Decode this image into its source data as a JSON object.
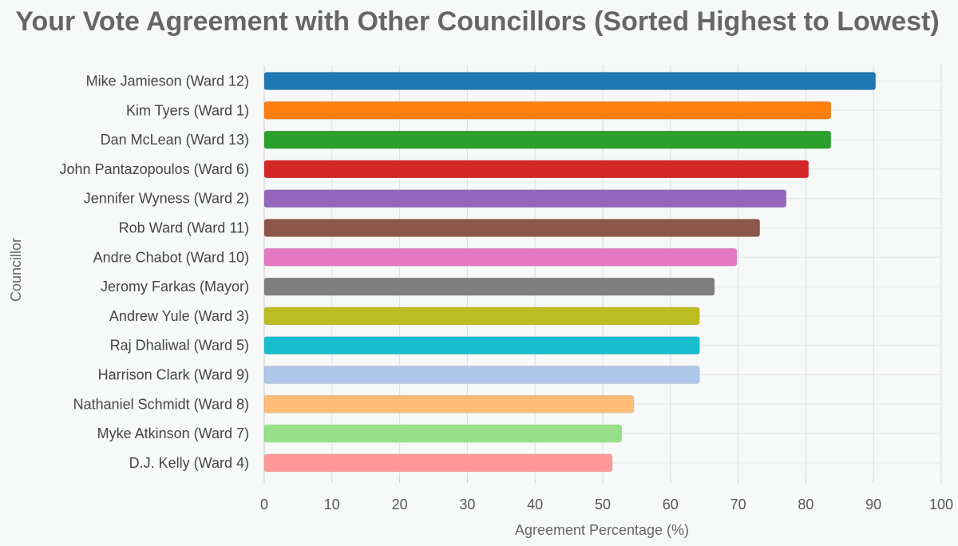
{
  "chart_data": {
    "type": "bar",
    "orientation": "horizontal",
    "title": "Your Vote Agreement with Other Councillors (Sorted Highest to Lowest)",
    "xlabel": "Agreement Percentage (%)",
    "ylabel": "Councillor",
    "xlim": [
      0,
      100
    ],
    "xticks": [
      "0",
      "10",
      "20",
      "30",
      "40",
      "50",
      "60",
      "70",
      "80",
      "90",
      "100"
    ],
    "grid": true,
    "legend": "none",
    "categories": [
      "Mike Jamieson (Ward 12)",
      "Kim Tyers (Ward 1)",
      "Dan McLean (Ward 13)",
      "John Pantazopoulos (Ward 6)",
      "Jennifer Wyness (Ward 2)",
      "Rob Ward (Ward 11)",
      "Andre Chabot (Ward 10)",
      "Jeromy Farkas (Mayor)",
      "Andrew Yule (Ward 3)",
      "Raj Dhaliwal (Ward 5)",
      "Harrison Clark (Ward 9)",
      "Nathaniel Schmidt (Ward 8)",
      "Myke Atkinson (Ward 7)",
      "D.J. Kelly (Ward 4)"
    ],
    "values": [
      90.3,
      83.7,
      83.7,
      80.4,
      77.1,
      73.2,
      69.8,
      66.5,
      64.3,
      64.3,
      64.3,
      54.6,
      52.8,
      51.4
    ],
    "colors": [
      "#1f77b4",
      "#ff7f0e",
      "#2ca02c",
      "#d62728",
      "#9467bd",
      "#8c564b",
      "#e377c2",
      "#7f7f7f",
      "#bcbd22",
      "#17becf",
      "#aec7e8",
      "#ffbb78",
      "#98df8a",
      "#ff9896"
    ]
  }
}
